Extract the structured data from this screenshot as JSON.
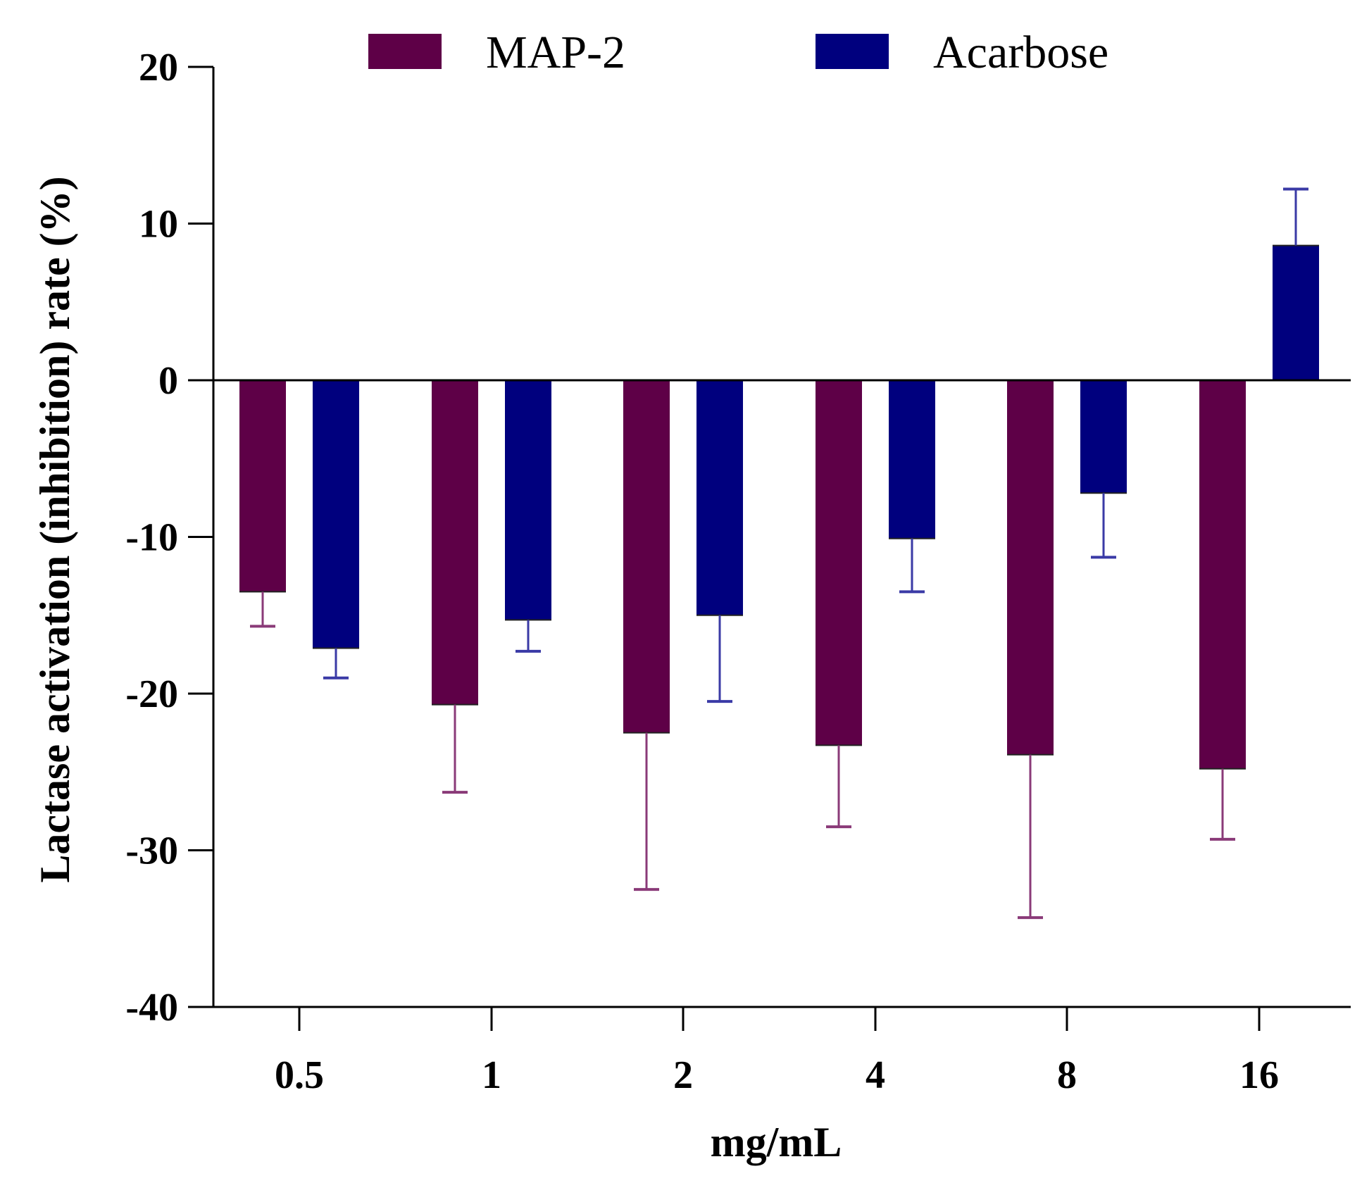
{
  "chart_data": {
    "type": "bar",
    "title": "",
    "xlabel": "mg/mL",
    "ylabel": "Lactase activation (inhibition) rate (%)",
    "categories": [
      "0.5",
      "1",
      "2",
      "4",
      "8",
      "16"
    ],
    "ylim": [
      -40,
      20
    ],
    "yticks": [
      20,
      10,
      0,
      -10,
      -20,
      -30,
      -40
    ],
    "ytick_labels": [
      "20",
      "10",
      "0",
      "-10",
      "-20",
      "-30",
      "-40"
    ],
    "grid": false,
    "legend_position": "top",
    "series": [
      {
        "name": "MAP-2",
        "color": "#5e0047",
        "errcolor": "#8a3a78",
        "values": [
          -13.5,
          -20.7,
          -22.5,
          -23.3,
          -23.9,
          -24.8
        ],
        "errors": [
          2.2,
          5.6,
          10.0,
          5.2,
          10.4,
          4.5
        ]
      },
      {
        "name": "Acarbose",
        "color": "#00007e",
        "errcolor": "#3a3aa6",
        "values": [
          -17.1,
          -15.3,
          -15.0,
          -10.1,
          -7.2,
          8.6
        ],
        "errors": [
          1.9,
          2.0,
          5.5,
          3.4,
          4.1,
          3.6
        ]
      }
    ]
  }
}
